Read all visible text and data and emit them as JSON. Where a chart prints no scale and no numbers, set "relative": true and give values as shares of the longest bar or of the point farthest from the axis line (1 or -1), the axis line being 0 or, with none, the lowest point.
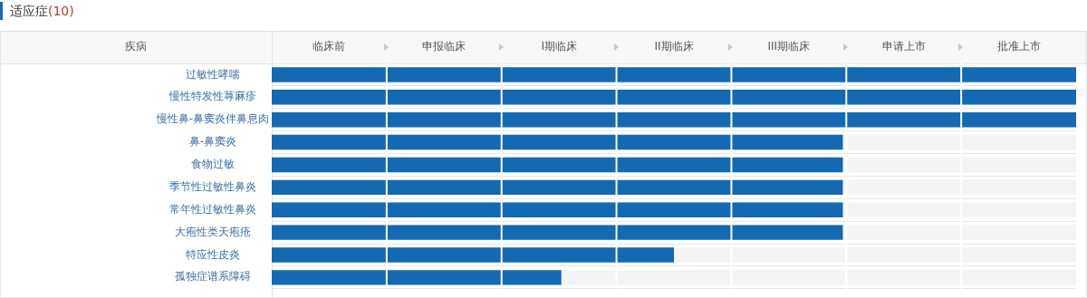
{
  "chart_data": {
    "type": "bar",
    "orientation": "horizontal",
    "relative": true,
    "title": "适应症(10)",
    "ylabel": "疾病",
    "categories": [
      "过敏性哮喘",
      "慢性特发性荨麻疹",
      "慢性鼻-鼻窦炎伴鼻息肉",
      "鼻-鼻窦炎",
      "食物过敏",
      "季节性过敏性鼻炎",
      "常年性过敏性鼻炎",
      "大疱性类天疱疮",
      "特应性皮炎",
      "孤独症谱系障碍"
    ],
    "values": [
      1,
      1,
      1,
      0.71,
      0.71,
      0.71,
      0.71,
      0.71,
      0.5,
      0.36
    ],
    "color": "#1469b3",
    "annotations": [
      "临床前",
      "申报临床",
      "I期临床",
      "II期临床",
      "III期临床",
      "申请上市",
      "批准上市"
    ],
    "grid": "y"
  }
}
